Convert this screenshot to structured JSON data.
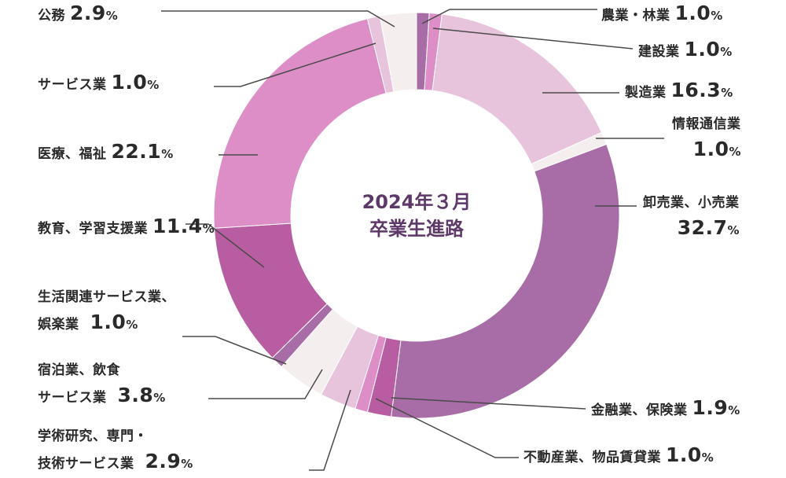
{
  "center_text": {
    "line1": "2024年３月",
    "line2": "卒業生進路"
  },
  "percent_sign": "%",
  "chart_data": {
    "type": "pie",
    "donut": true,
    "title": "2024年３月 卒業生進路",
    "slices": [
      {
        "name_lines": [
          "農業・林業"
        ],
        "value": "1.0",
        "color": "#a86ca6"
      },
      {
        "name_lines": [
          "建設業"
        ],
        "value": "1.0",
        "color": "#dd8ec7"
      },
      {
        "name_lines": [
          "製造業"
        ],
        "value": "16.3",
        "color": "#e8c3dc"
      },
      {
        "name_lines": [
          "情報通信業"
        ],
        "value": "1.0",
        "color": "#f4eeee"
      },
      {
        "name_lines": [
          "卸売業、小売業"
        ],
        "value": "32.7",
        "color": "#a86ca6"
      },
      {
        "name_lines": [
          "金融業、保険業"
        ],
        "value": "1.9",
        "color": "#b85da2"
      },
      {
        "name_lines": [
          "不動産業、物品賃貸業"
        ],
        "value": "1.0",
        "color": "#dd8ec7"
      },
      {
        "name_lines": [
          "学術研究、専門・",
          "技術サービス業"
        ],
        "value": "2.9",
        "color": "#e8c3dc"
      },
      {
        "name_lines": [
          "宿泊業、飲食",
          "サービス業"
        ],
        "value": "3.8",
        "color": "#f4eeee"
      },
      {
        "name_lines": [
          "生活関連サービス業、",
          "娯楽業"
        ],
        "value": "1.0",
        "color": "#a86ca6"
      },
      {
        "name_lines": [
          "教育、学習支援業"
        ],
        "value": "11.4",
        "color": "#b85da2"
      },
      {
        "name_lines": [
          "医療、福祉"
        ],
        "value": "22.1",
        "color": "#dd8ec7"
      },
      {
        "name_lines": [
          "サービス業"
        ],
        "value": "1.0",
        "color": "#e8c3dc"
      },
      {
        "name_lines": [
          "公務"
        ],
        "value": "2.9",
        "color": "#f4eeee"
      }
    ]
  }
}
